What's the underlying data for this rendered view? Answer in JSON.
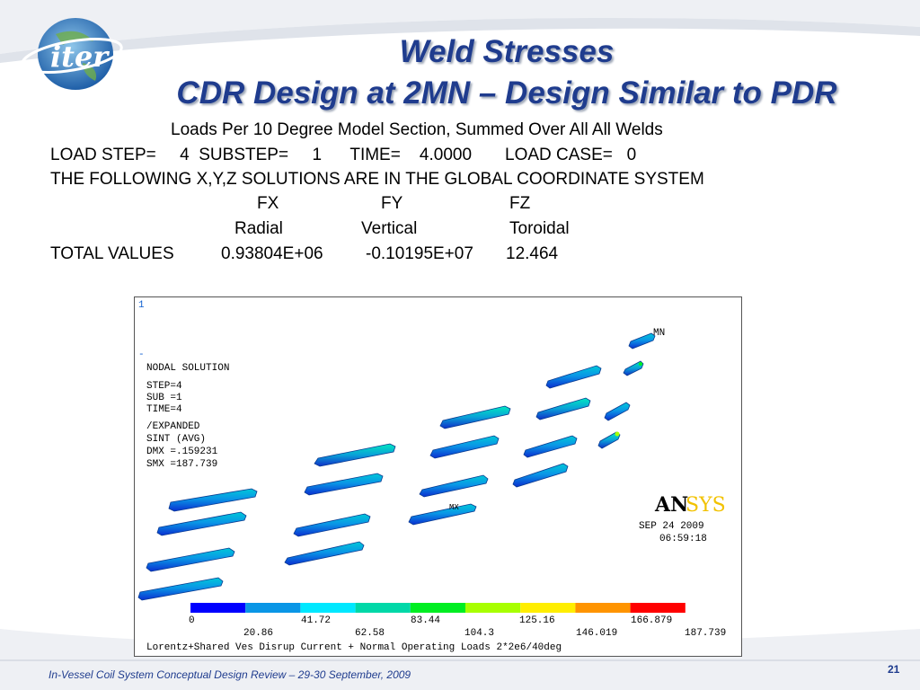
{
  "title": {
    "line1": "Weld Stresses",
    "line2": "CDR Design at 2MN – Design Similar to PDR"
  },
  "text": {
    "subtitle": "Loads Per 10 Degree Model Section, Summed Over All All Welds",
    "load_step_line": "LOAD STEP=     4  SUBSTEP=     1      TIME=    4.0000       LOAD CASE=   0",
    "coord_line": "THE FOLLOWING X,Y,Z SOLUTIONS ARE IN THE GLOBAL COORDINATE SYSTEM",
    "fx": "FX",
    "fy": "FY",
    "fz": "FZ",
    "radial": "Radial",
    "vertical": "Vertical",
    "toroidal": "Toroidal",
    "total_label": "TOTAL VALUES",
    "total_fx": "0.93804E+06",
    "total_fy": "-0.10195E+07",
    "total_fz": "12.464"
  },
  "plot": {
    "corner_mark": "1",
    "nodal_solution": "NODAL SOLUTION",
    "step": "STEP=4",
    "sub": "SUB =1",
    "time": "TIME=4",
    "expanded": "/EXPANDED",
    "sint": "SINT     (AVG)",
    "dmx": "DMX =.159231",
    "smx": "SMX =187.739",
    "mn_label": "MN",
    "mx_label": "MX",
    "ansys_an": "AN",
    "ansys_sys": "SYS",
    "date": "SEP 24 2009",
    "time_stamp": "06:59:18",
    "legend_top": [
      "0",
      "41.72",
      "83.44",
      "125.16",
      "166.879"
    ],
    "legend_bottom": [
      "20.86",
      "62.58",
      "104.3",
      "146.019",
      "187.739"
    ],
    "legend_colors": [
      "#0000ff",
      "#0a96e6",
      "#00e8ff",
      "#00d8a8",
      "#00ee22",
      "#a8ff00",
      "#ffee00",
      "#ff9400",
      "#ff0000"
    ],
    "caption": "Lorentz+Shared Ves Disrup Current + Normal Operating Loads 2*2e6/40deg"
  },
  "footer": {
    "text": "In-Vessel Coil System Conceptual Design Review – 29-30 September, 2009",
    "page": "21"
  },
  "logo": {
    "text": "iter"
  }
}
